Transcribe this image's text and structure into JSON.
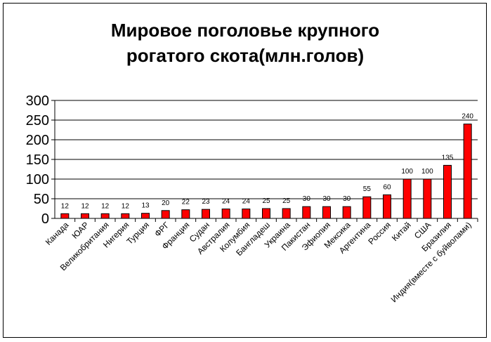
{
  "chart_data": {
    "type": "bar",
    "title_lines": [
      "Мировое поголовье крупного",
      "рогатого скота(млн.голов)"
    ],
    "categories": [
      "Канада",
      "ЮАР",
      "Великобритания",
      "Нигерия",
      "Турция",
      "ФРГ",
      "Франция",
      "Судан",
      "Австралия",
      "Колумбия",
      "Бангладеш",
      "Украина",
      "Пакистан",
      "Эфиопия",
      "Мексика",
      "Аргентина",
      "Россия",
      "Китай",
      "США",
      "Бразилия",
      "Индия(вместе с буйволами)"
    ],
    "values": [
      12,
      12,
      12,
      12,
      13,
      20,
      22,
      23,
      24,
      24,
      25,
      25,
      30,
      30,
      30,
      55,
      60,
      100,
      100,
      135,
      240
    ],
    "data_labels": [
      "12",
      "12",
      "12",
      "12",
      "13",
      "20",
      "22",
      "23",
      "24",
      "24",
      "25",
      "25",
      "30",
      "30",
      "30",
      "55",
      "60",
      "100",
      "100",
      "135",
      "240"
    ],
    "ylim": [
      0,
      300
    ],
    "yticks": [
      0,
      50,
      100,
      150,
      200,
      250,
      300
    ],
    "ytick_labels": [
      "0",
      "50",
      "100",
      "150",
      "200",
      "250",
      "300"
    ],
    "grid": true,
    "legend": "none",
    "bar_color": "#ff0000"
  }
}
